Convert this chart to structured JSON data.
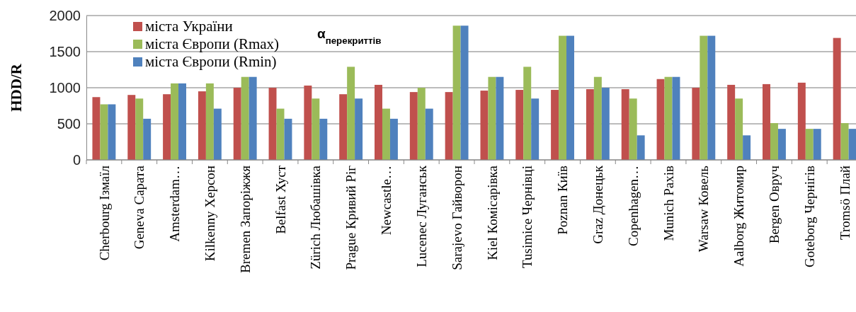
{
  "chart_data": {
    "type": "bar",
    "ylabel": "HDD/R",
    "categories": [
      "Cherbourg Ізмаїл",
      "Geneva Сарата",
      "Amsterdam…",
      "Kilkenny Херсон",
      "Bremen Запоріжжя",
      "Belfast Хуст",
      "Zürich Любашівка",
      "Prague Кривий Ріг",
      "Newcastle…",
      "Lucenec Луганськ",
      "Sarajevo Гайворон",
      "Kiel Комісарівка",
      "Tusimice Чернівці",
      "Poznan Київ",
      "Graz Донецьк",
      "Copenhagen…",
      "Munich Рахів",
      "Warsaw Ковель",
      "Aalborg Житомир",
      "Bergen Овруч",
      "Goteborg Чернігів",
      "Tromsö Плай"
    ],
    "series": [
      {
        "name": "міста України",
        "color": "#c0504d",
        "values": [
          870,
          900,
          910,
          950,
          1000,
          1000,
          1030,
          910,
          1040,
          940,
          940,
          960,
          970,
          970,
          980,
          980,
          1120,
          1000,
          1040,
          1050,
          1070,
          1690
        ]
      },
      {
        "name": "міста Європи (Rmax)",
        "color": "#9bbb59",
        "values": [
          770,
          850,
          1060,
          1060,
          1150,
          710,
          850,
          1290,
          710,
          1000,
          1860,
          1150,
          1290,
          1720,
          1150,
          850,
          1150,
          1720,
          850,
          510,
          430,
          510
        ]
      },
      {
        "name": "міста Європи (Rmin)",
        "color": "#4f81bd",
        "values": [
          770,
          570,
          1060,
          710,
          1150,
          570,
          570,
          850,
          570,
          710,
          1860,
          1150,
          850,
          1720,
          1000,
          340,
          1150,
          1720,
          340,
          430,
          430,
          430
        ]
      }
    ],
    "ylim": [
      0,
      2000
    ],
    "yticks": [
      0,
      500,
      1000,
      1500,
      2000
    ],
    "grid": "y",
    "legend": "top left",
    "annotations": [
      "α$_{перекриттів}$"
    ]
  }
}
